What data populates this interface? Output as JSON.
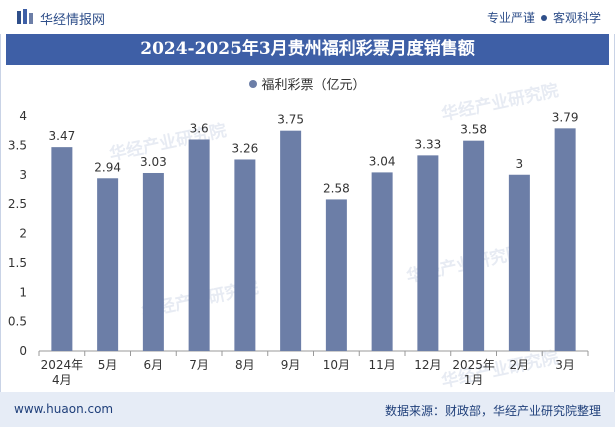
{
  "header": {
    "brand": "华经情报网",
    "tags": [
      "专业严谨",
      "客观科学"
    ]
  },
  "title": "2024-2025年3月贵州福利彩票月度销售额",
  "legend_label": "福利彩票（亿元）",
  "watermark_text": "华经产业研究院",
  "watermark_url": "www.huaon.com",
  "footer": {
    "site": "www.huaon.com",
    "source": "数据来源：财政部，华经产业研究院整理"
  },
  "colors": {
    "bar": "#6c7ea7",
    "title_bg": "#3e5fa6",
    "footer_bg": "#e6ecf6",
    "text": "#333333"
  },
  "chart_data": {
    "type": "bar",
    "title": "2024-2025年3月贵州福利彩票月度销售额",
    "categories": [
      "2024年 4月",
      "5月",
      "6月",
      "7月",
      "8月",
      "9月",
      "10月",
      "11月",
      "12月",
      "2025年 1月",
      "2月",
      "3月"
    ],
    "category_lines": [
      [
        "2024年",
        "4月"
      ],
      [
        "5月"
      ],
      [
        "6月"
      ],
      [
        "7月"
      ],
      [
        "8月"
      ],
      [
        "9月"
      ],
      [
        "10月"
      ],
      [
        "11月"
      ],
      [
        "12月"
      ],
      [
        "2025年",
        "1月"
      ],
      [
        "2月"
      ],
      [
        "3月"
      ]
    ],
    "series": [
      {
        "name": "福利彩票（亿元）",
        "values": [
          3.47,
          2.94,
          3.03,
          3.6,
          3.26,
          3.75,
          2.58,
          3.04,
          3.33,
          3.58,
          3,
          3.79
        ]
      }
    ],
    "value_labels": [
      "3.47",
      "2.94",
      "3.03",
      "3.6",
      "3.26",
      "3.75",
      "2.58",
      "3.04",
      "3.33",
      "3.58",
      "3",
      "3.79"
    ],
    "y_ticks": [
      "0",
      "0.5",
      "1",
      "1.5",
      "2",
      "2.5",
      "3",
      "3.5",
      "4"
    ],
    "ylim": [
      0,
      4
    ],
    "grid": false,
    "legend_position": "top"
  }
}
